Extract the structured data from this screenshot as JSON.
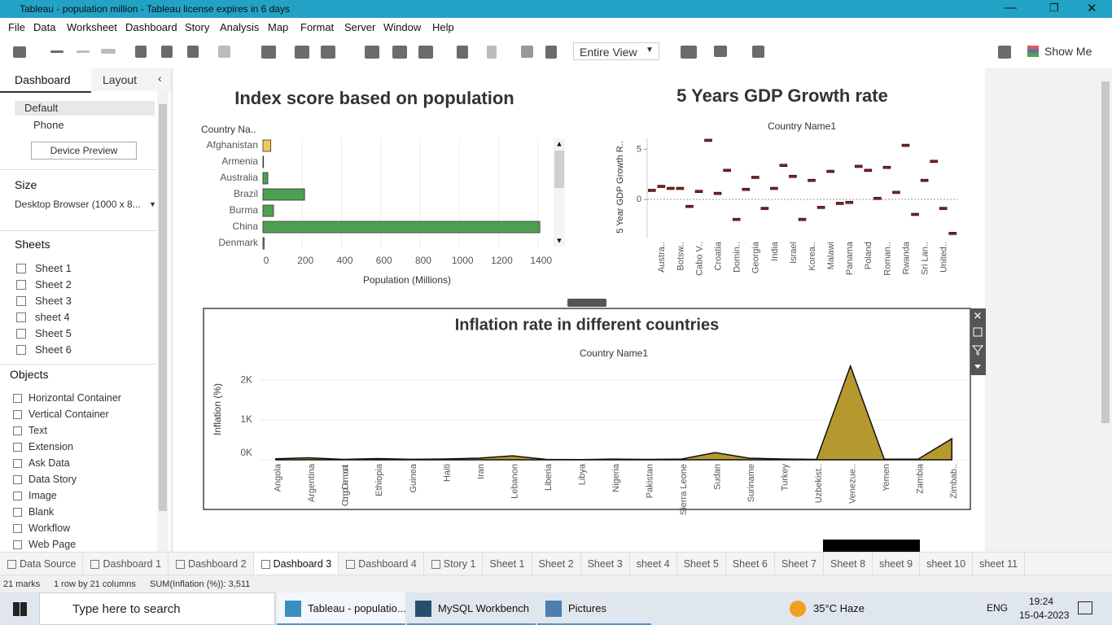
{
  "window_title": "Tableau - population million - Tableau license expires in 6 days",
  "menu": [
    "File",
    "Data",
    "Worksheet",
    "Dashboard",
    "Story",
    "Analysis",
    "Map",
    "Format",
    "Server",
    "Window",
    "Help"
  ],
  "toolbar": {
    "view": "Entire View",
    "show_me": "Show Me"
  },
  "sidebar": {
    "tabs": [
      "Dashboard",
      "Layout"
    ],
    "devices": [
      "Default",
      "Phone"
    ],
    "device_preview": "Device Preview",
    "size_heading": "Size",
    "size_value": "Desktop Browser (1000 x 8...",
    "sheets_heading": "Sheets",
    "sheets": [
      "Sheet 1",
      "Sheet 2",
      "Sheet 3",
      "sheet 4",
      "Sheet 5",
      "Sheet 6"
    ],
    "objects_heading": "Objects",
    "objects": [
      "Horizontal Container",
      "Vertical Container",
      "Text",
      "Extension",
      "Ask Data",
      "Data Story",
      "Image",
      "Blank",
      "Workflow",
      "Web Page"
    ]
  },
  "chart_data": [
    {
      "type": "bar",
      "title": "Index score based on population",
      "row_header": "Country Na..",
      "categories": [
        "Afghanistan",
        "Armenia",
        "Australia",
        "Brazil",
        "Burma",
        "China",
        "Denmark"
      ],
      "values": [
        40,
        3,
        25,
        212,
        54,
        1410,
        6
      ],
      "colors": [
        "#f2c85b",
        "#4e9f50",
        "#4e9f50",
        "#4e9f50",
        "#4e9f50",
        "#4e9f50",
        "#4e9f50"
      ],
      "xlim": [
        0,
        1480
      ],
      "xticks": [
        0,
        200,
        400,
        600,
        800,
        1000,
        1200,
        1400
      ],
      "xlabel": "Population (Millions)",
      "grid": true
    },
    {
      "type": "dash",
      "title": "5 Years GDP Growth rate",
      "subtitle": "Country Name1",
      "ylabel": "5 Year GDP Growth R..",
      "categories": [
        null,
        "Austra..",
        null,
        "Botsw..",
        null,
        "Cabo V..",
        null,
        "Croatia",
        null,
        "Domin..",
        null,
        "Georgia",
        null,
        "India",
        null,
        "Israel",
        null,
        "Korea..",
        null,
        "Malawi",
        null,
        "Panama",
        null,
        "Poland",
        null,
        "Roman..",
        null,
        "Rwanda",
        null,
        "Sri Lan..",
        null,
        "United..",
        null
      ],
      "values": [
        0.9,
        1.3,
        1.1,
        1.1,
        -0.7,
        0.8,
        5.9,
        0.6,
        2.9,
        -2.0,
        1.0,
        2.2,
        -0.9,
        1.1,
        3.4,
        2.3,
        -2.0,
        1.9,
        -0.8,
        2.8,
        -0.4,
        -0.3,
        3.3,
        2.9,
        0.1,
        3.2,
        0.7,
        5.4,
        -1.5,
        1.9,
        3.8,
        -0.9,
        -3.4
      ],
      "color": "#8b1a1a",
      "ylim": [
        -3.9,
        6.1
      ],
      "yticks": [
        0,
        5
      ],
      "zero_line": true
    },
    {
      "type": "area",
      "title": "Inflation rate in different countries",
      "subtitle": "Country Name1",
      "ylabel": "Inflation (%)",
      "categories": [
        "Angola",
        "Argentina",
        "Congo Democrati..",
        "Ethiopia",
        "Guinea",
        "Haiti",
        "Iran",
        "Lebanon",
        "Liberia",
        "Libya",
        "Nigeria",
        "Pakistan",
        "Sierra Leone",
        "Sudan",
        "Suriname",
        "Turkey",
        "Uzbekist..",
        "Venezue..",
        "Yemen",
        "Zambia",
        "Zimbab.."
      ],
      "values": [
        25,
        50,
        10,
        30,
        12,
        20,
        40,
        100,
        10,
        5,
        17,
        10,
        17,
        180,
        40,
        20,
        10,
        2355,
        15,
        15,
        530
      ],
      "color": "#b5992f",
      "ylim": [
        0,
        2350
      ],
      "yticks": [
        {
          "value": 0,
          "label": "0K"
        },
        {
          "value": 1000,
          "label": "1K"
        },
        {
          "value": 2000,
          "label": "2K"
        }
      ],
      "grid": true
    }
  ],
  "tabs": [
    "Data Source",
    "Dashboard 1",
    "Dashboard 2",
    "Dashboard 3",
    "Dashboard 4",
    "Story 1",
    "Sheet 1",
    "Sheet 2",
    "Sheet 3",
    "sheet 4",
    "Sheet 5",
    "Sheet 6",
    "Sheet 7",
    "Sheet 8",
    "sheet 9",
    "sheet 10",
    "sheet 11"
  ],
  "active_tab": 3,
  "status": [
    "21 marks",
    "1 row by 21 columns",
    "SUM(Inflation (%)): 3,511"
  ],
  "taskbar": {
    "search": "Type here to search",
    "apps": [
      "Tableau - populatio...",
      "MySQL Workbench",
      "Pictures"
    ],
    "weather": "35°C Haze",
    "lang": "ENG",
    "time": "19:24",
    "date": "15-04-2023"
  }
}
